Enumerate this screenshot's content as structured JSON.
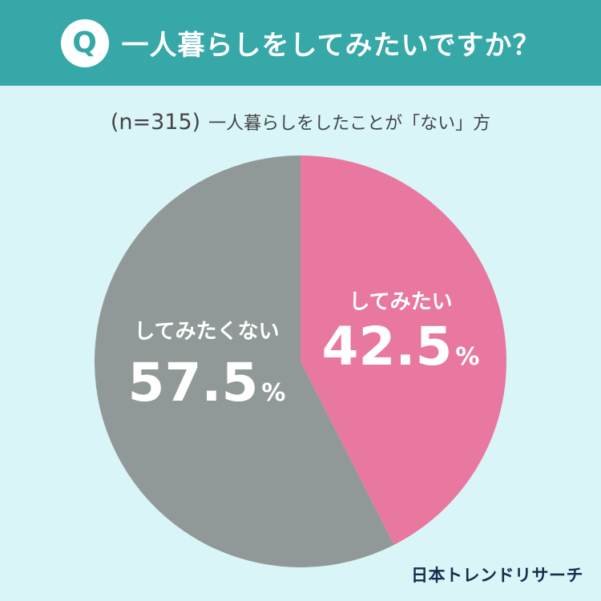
{
  "header": {
    "badge": "Q",
    "question": "一人暮らしをしてみたいですか？"
  },
  "subtitle": {
    "n": "(n=315)",
    "text": "一人暮らしをしたことが「ない」方"
  },
  "chart_data": {
    "type": "pie",
    "slices": [
      {
        "label": "してみたい",
        "value": 42.5,
        "display": "42.5",
        "unit": "%",
        "color": "#e8789f"
      },
      {
        "label": "してみたくない",
        "value": 57.5,
        "display": "57.5",
        "unit": "%",
        "color": "#919998"
      }
    ]
  },
  "logo": "日本トレンドリサーチ"
}
